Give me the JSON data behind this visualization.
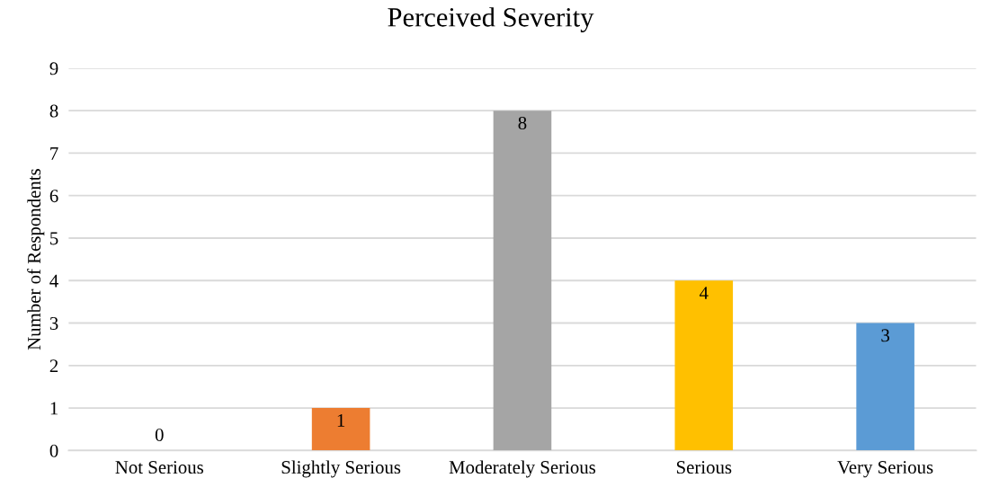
{
  "chart_data": {
    "type": "bar",
    "title": "Perceived Severity",
    "ylabel": "Number of Respondents",
    "categories": [
      "Not Serious",
      "Slightly Serious",
      "Moderately Serious",
      "Serious",
      "Very Serious"
    ],
    "values": [
      0,
      1,
      8,
      4,
      3
    ],
    "colors": [
      "#4472c4",
      "#ed7d31",
      "#a5a5a5",
      "#ffc000",
      "#5b9bd5"
    ],
    "ylim": [
      0,
      9
    ],
    "yticks": [
      0,
      1,
      2,
      3,
      4,
      5,
      6,
      7,
      8,
      9
    ],
    "grid": "y",
    "data_labels": true,
    "legend": false
  }
}
